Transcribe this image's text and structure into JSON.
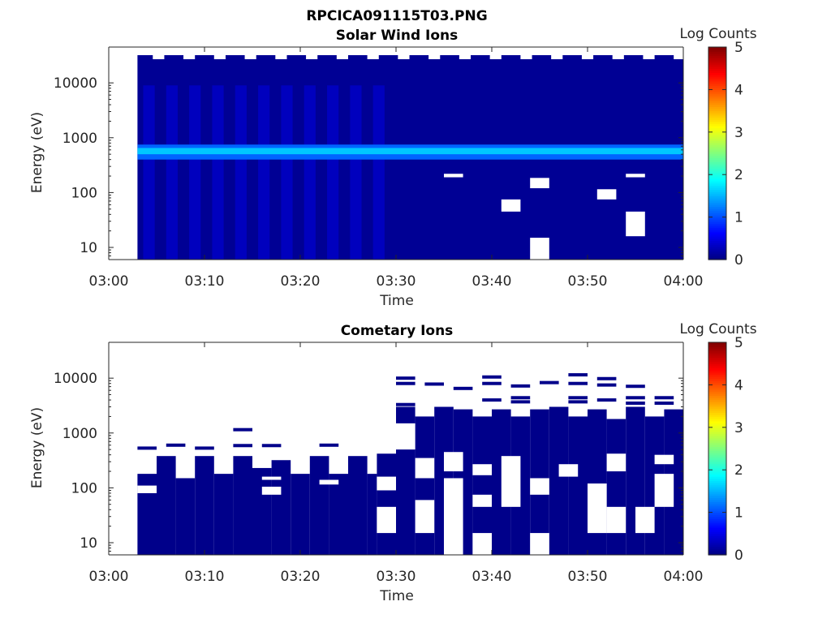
{
  "figure_title": "RPCICA091115T03.PNG",
  "chart_data": [
    {
      "type": "heatmap",
      "title": "Solar Wind Ions",
      "xlabel": "Time",
      "ylabel": "Energy (eV)",
      "colorbar_label": "Log Counts",
      "colorbar_ticks": [
        "0",
        "1",
        "2",
        "3",
        "4",
        "5"
      ],
      "clim": [
        0,
        5
      ],
      "colormap": "jet",
      "x_ticks": [
        "03:00",
        "03:10",
        "03:20",
        "03:30",
        "03:40",
        "03:50",
        "04:00"
      ],
      "xlim": [
        "03:00",
        "04:00"
      ],
      "y_scale": "log",
      "y_ticks": [
        "10",
        "100",
        "1000",
        "10000"
      ],
      "ylim_ev": [
        6,
        45000
      ],
      "data_start": "03:03",
      "peak_energy_ev": [
        400,
        750
      ],
      "peak_log_counts": 1.6,
      "background_log_counts": 0.1,
      "gaps": [
        {
          "t0": "03:35",
          "t1": "03:37",
          "e0": 190,
          "e1": 220
        },
        {
          "t0": "03:41",
          "t1": "03:43",
          "e0": 45,
          "e1": 75
        },
        {
          "t0": "03:44",
          "t1": "03:46",
          "e0": 120,
          "e1": 185
        },
        {
          "t0": "03:44",
          "t1": "03:46",
          "e0": 6,
          "e1": 15
        },
        {
          "t0": "03:51",
          "t1": "03:53",
          "e0": 75,
          "e1": 115
        },
        {
          "t0": "03:54",
          "t1": "03:56",
          "e0": 190,
          "e1": 220
        },
        {
          "t0": "03:54",
          "t1": "03:56",
          "e0": 16,
          "e1": 45
        }
      ]
    },
    {
      "type": "heatmap",
      "title": "Cometary Ions",
      "xlabel": "Time",
      "ylabel": "Energy (eV)",
      "colorbar_label": "Log Counts",
      "colorbar_ticks": [
        "0",
        "1",
        "2",
        "3",
        "4",
        "5"
      ],
      "clim": [
        0,
        5
      ],
      "colormap": "jet",
      "x_ticks": [
        "03:00",
        "03:10",
        "03:20",
        "03:30",
        "03:40",
        "03:50",
        "04:00"
      ],
      "xlim": [
        "03:00",
        "04:00"
      ],
      "y_scale": "log",
      "y_ticks": [
        "10",
        "100",
        "1000",
        "10000"
      ],
      "ylim_ev": [
        6,
        45000
      ],
      "data_start": "03:03",
      "fill_log_counts": 0.05,
      "column_tops_ev": [
        {
          "t0": "03:03",
          "t1": "03:05",
          "top": 180
        },
        {
          "t0": "03:05",
          "t1": "03:07",
          "top": 380
        },
        {
          "t0": "03:07",
          "t1": "03:09",
          "top": 150
        },
        {
          "t0": "03:09",
          "t1": "03:11",
          "top": 380
        },
        {
          "t0": "03:11",
          "t1": "03:13",
          "top": 180
        },
        {
          "t0": "03:13",
          "t1": "03:15",
          "top": 380
        },
        {
          "t0": "03:15",
          "t1": "03:17",
          "top": 230
        },
        {
          "t0": "03:17",
          "t1": "03:19",
          "top": 320
        },
        {
          "t0": "03:19",
          "t1": "03:21",
          "top": 180
        },
        {
          "t0": "03:21",
          "t1": "03:23",
          "top": 380
        },
        {
          "t0": "03:23",
          "t1": "03:25",
          "top": 180
        },
        {
          "t0": "03:25",
          "t1": "03:27",
          "top": 380
        },
        {
          "t0": "03:27",
          "t1": "03:28",
          "top": 180
        },
        {
          "t0": "03:28",
          "t1": "03:30",
          "top": 420
        },
        {
          "t0": "03:30",
          "t1": "03:32",
          "top": 3000
        },
        {
          "t0": "03:32",
          "t1": "03:34",
          "top": 2000
        },
        {
          "t0": "03:34",
          "t1": "03:36",
          "top": 3000
        },
        {
          "t0": "03:36",
          "t1": "03:38",
          "top": 2700
        },
        {
          "t0": "03:38",
          "t1": "03:40",
          "top": 2000
        },
        {
          "t0": "03:40",
          "t1": "03:42",
          "top": 2700
        },
        {
          "t0": "03:42",
          "t1": "03:44",
          "top": 2000
        },
        {
          "t0": "03:44",
          "t1": "03:46",
          "top": 2700
        },
        {
          "t0": "03:46",
          "t1": "03:48",
          "top": 3000
        },
        {
          "t0": "03:48",
          "t1": "03:50",
          "top": 2000
        },
        {
          "t0": "03:50",
          "t1": "03:52",
          "top": 2700
        },
        {
          "t0": "03:52",
          "t1": "03:54",
          "top": 1800
        },
        {
          "t0": "03:54",
          "t1": "03:56",
          "top": 3000
        },
        {
          "t0": "03:56",
          "t1": "03:58",
          "top": 2000
        },
        {
          "t0": "03:58",
          "t1": "04:00",
          "top": 2700
        }
      ],
      "gaps": [
        {
          "t0": "03:03",
          "t1": "03:05",
          "e0": 80,
          "e1": 110
        },
        {
          "t0": "03:16",
          "t1": "03:18",
          "e0": 75,
          "e1": 105
        },
        {
          "t0": "03:16",
          "t1": "03:18",
          "e0": 140,
          "e1": 160
        },
        {
          "t0": "03:22",
          "t1": "03:24",
          "e0": 115,
          "e1": 140
        },
        {
          "t0": "03:28",
          "t1": "03:30",
          "e0": 90,
          "e1": 160
        },
        {
          "t0": "03:28",
          "t1": "03:30",
          "e0": 15,
          "e1": 45
        },
        {
          "t0": "03:30",
          "t1": "03:32",
          "e0": 500,
          "e1": 1500
        },
        {
          "t0": "03:32",
          "t1": "03:34",
          "e0": 15,
          "e1": 60
        },
        {
          "t0": "03:32",
          "t1": "03:34",
          "e0": 150,
          "e1": 350
        },
        {
          "t0": "03:35",
          "t1": "03:37",
          "e0": 6,
          "e1": 150
        },
        {
          "t0": "03:35",
          "t1": "03:37",
          "e0": 200,
          "e1": 450
        },
        {
          "t0": "03:38",
          "t1": "03:40",
          "e0": 6,
          "e1": 15
        },
        {
          "t0": "03:38",
          "t1": "03:40",
          "e0": 45,
          "e1": 75
        },
        {
          "t0": "03:38",
          "t1": "03:40",
          "e0": 170,
          "e1": 270
        },
        {
          "t0": "03:41",
          "t1": "03:43",
          "e0": 45,
          "e1": 380
        },
        {
          "t0": "03:44",
          "t1": "03:46",
          "e0": 6,
          "e1": 15
        },
        {
          "t0": "03:44",
          "t1": "03:46",
          "e0": 75,
          "e1": 150
        },
        {
          "t0": "03:47",
          "t1": "03:49",
          "e0": 160,
          "e1": 270
        },
        {
          "t0": "03:50",
          "t1": "03:52",
          "e0": 15,
          "e1": 120
        },
        {
          "t0": "03:52",
          "t1": "03:54",
          "e0": 15,
          "e1": 45
        },
        {
          "t0": "03:52",
          "t1": "03:54",
          "e0": 200,
          "e1": 420
        },
        {
          "t0": "03:55",
          "t1": "03:57",
          "e0": 15,
          "e1": 45
        },
        {
          "t0": "03:57",
          "t1": "03:59",
          "e0": 45,
          "e1": 180
        },
        {
          "t0": "03:57",
          "t1": "03:59",
          "e0": 270,
          "e1": 400
        }
      ],
      "isolated_bars": [
        {
          "t0": "03:03",
          "t1": "03:05",
          "e": 530
        },
        {
          "t0": "03:06",
          "t1": "03:08",
          "e": 600
        },
        {
          "t0": "03:09",
          "t1": "03:11",
          "e": 530
        },
        {
          "t0": "03:13",
          "t1": "03:15",
          "e": 590
        },
        {
          "t0": "03:13",
          "t1": "03:15",
          "e": 1150
        },
        {
          "t0": "03:16",
          "t1": "03:18",
          "e": 590
        },
        {
          "t0": "03:22",
          "t1": "03:24",
          "e": 600
        },
        {
          "t0": "03:30",
          "t1": "03:32",
          "e": 3300
        },
        {
          "t0": "03:30",
          "t1": "03:32",
          "e": 10000
        },
        {
          "t0": "03:30",
          "t1": "03:32",
          "e": 8000
        },
        {
          "t0": "03:33",
          "t1": "03:35",
          "e": 7800
        },
        {
          "t0": "03:36",
          "t1": "03:38",
          "e": 6500
        },
        {
          "t0": "03:39",
          "t1": "03:41",
          "e": 10500
        },
        {
          "t0": "03:39",
          "t1": "03:41",
          "e": 8000
        },
        {
          "t0": "03:39",
          "t1": "03:41",
          "e": 4000
        },
        {
          "t0": "03:42",
          "t1": "03:44",
          "e": 7200
        },
        {
          "t0": "03:42",
          "t1": "03:44",
          "e": 4400
        },
        {
          "t0": "03:42",
          "t1": "03:44",
          "e": 3700
        },
        {
          "t0": "03:45",
          "t1": "03:47",
          "e": 8300
        },
        {
          "t0": "03:48",
          "t1": "03:50",
          "e": 11500
        },
        {
          "t0": "03:48",
          "t1": "03:50",
          "e": 8000
        },
        {
          "t0": "03:48",
          "t1": "03:50",
          "e": 4400
        },
        {
          "t0": "03:48",
          "t1": "03:50",
          "e": 3700
        },
        {
          "t0": "03:51",
          "t1": "03:53",
          "e": 9800
        },
        {
          "t0": "03:51",
          "t1": "03:53",
          "e": 7500
        },
        {
          "t0": "03:51",
          "t1": "03:53",
          "e": 4000
        },
        {
          "t0": "03:54",
          "t1": "03:56",
          "e": 7100
        },
        {
          "t0": "03:54",
          "t1": "03:56",
          "e": 4400
        },
        {
          "t0": "03:54",
          "t1": "03:56",
          "e": 3500
        },
        {
          "t0": "03:57",
          "t1": "03:59",
          "e": 4400
        },
        {
          "t0": "03:57",
          "t1": "03:59",
          "e": 3500
        }
      ]
    }
  ]
}
